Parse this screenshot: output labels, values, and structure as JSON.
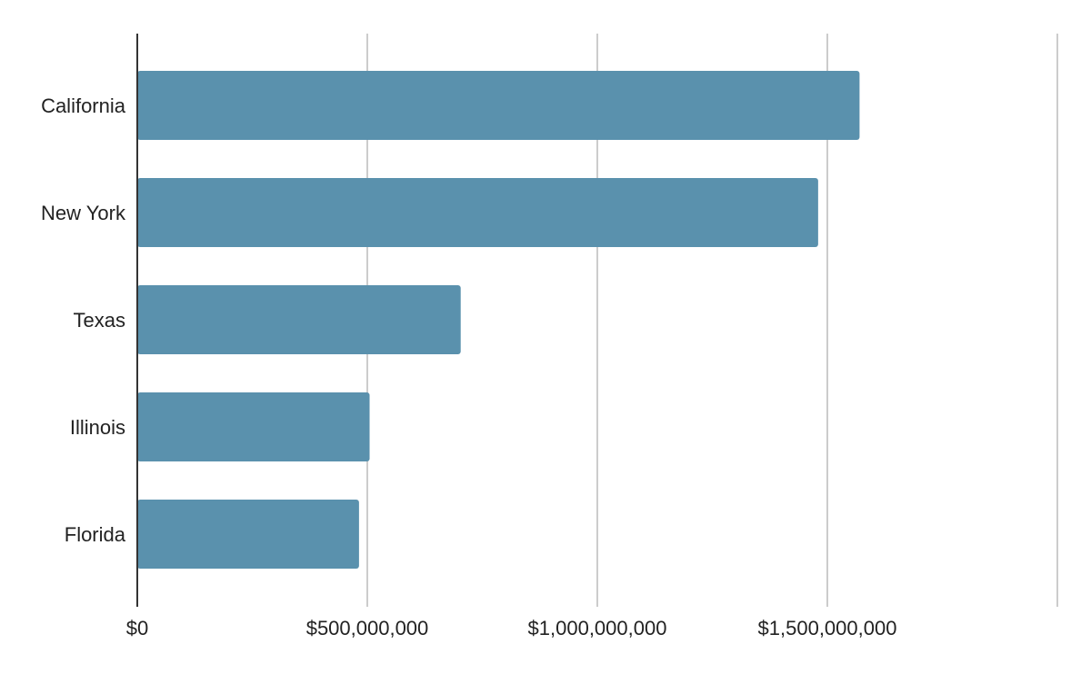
{
  "chart_data": {
    "type": "bar",
    "orientation": "horizontal",
    "categories": [
      "California",
      "New York",
      "Texas",
      "Illinois",
      "Florida"
    ],
    "values": [
      1570000000,
      1480000000,
      703000000,
      505000000,
      482000000
    ],
    "x_ticks": [
      0,
      500000000,
      1000000000,
      1500000000,
      2000000000
    ],
    "x_tick_labels": [
      "$0",
      "$500,000,000",
      "$1,000,000,000",
      "$1,500,000,000",
      ""
    ],
    "xlim": [
      0,
      2000000000
    ],
    "grid": true,
    "title": "",
    "xlabel": "",
    "ylabel": "",
    "bar_color": "#5a91ad",
    "grid_color": "#cccccc",
    "axis_color": "#333333"
  }
}
